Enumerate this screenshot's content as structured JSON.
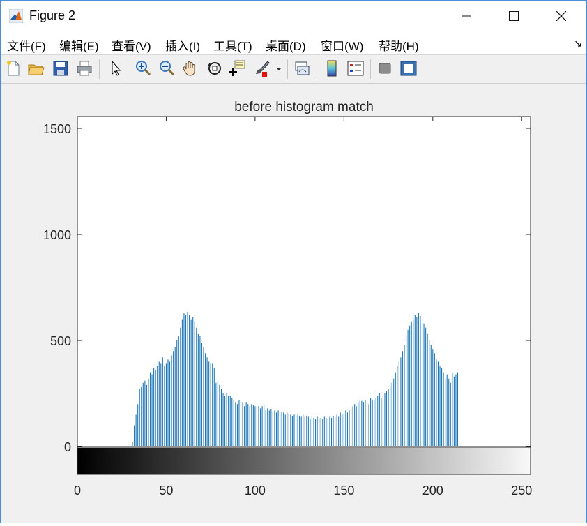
{
  "window": {
    "title": "Figure 2",
    "minimize_label": "—",
    "maximize_label": "☐",
    "close_label": "✕"
  },
  "menu": {
    "items": [
      "文件(F)",
      "编辑(E)",
      "查看(V)",
      "插入(I)",
      "工具(T)",
      "桌面(D)",
      "窗口(W)",
      "帮助(H)"
    ],
    "corner_glyph": "↘"
  },
  "toolbar": {
    "icons": [
      "new-file-icon",
      "open-folder-icon",
      "save-icon",
      "print-icon",
      "pointer-icon",
      "zoom-in-icon",
      "zoom-out-icon",
      "pan-hand-icon",
      "rotate-3d-icon",
      "data-cursor-icon",
      "brush-icon",
      "brush-dropdown-icon",
      "link-plot-icon",
      "colorbar-icon",
      "legend-icon",
      "hide-plot-tools-icon",
      "show-plot-tools-icon"
    ]
  },
  "chart_data": {
    "type": "bar",
    "title": "before histogram match",
    "xlabel": "",
    "ylabel": "",
    "xlim": [
      0,
      255
    ],
    "ylim": [
      0,
      1500
    ],
    "xticks": [
      "0",
      "50",
      "100",
      "150",
      "200",
      "250"
    ],
    "yticks": [
      "0",
      "500",
      "1000",
      "1500"
    ],
    "bar_color": "#1f77b4",
    "colorbar": "grayscale 0-255",
    "x_start": 31,
    "values": [
      20,
      100,
      150,
      200,
      270,
      280,
      300,
      310,
      290,
      320,
      350,
      340,
      370,
      360,
      380,
      400,
      390,
      420,
      380,
      390,
      410,
      400,
      430,
      450,
      470,
      500,
      520,
      560,
      600,
      630,
      620,
      635,
      620,
      600,
      610,
      590,
      560,
      530,
      520,
      490,
      470,
      440,
      420,
      400,
      390,
      390,
      370,
      300,
      310,
      290,
      270,
      250,
      240,
      250,
      240,
      240,
      230,
      220,
      210,
      200,
      220,
      200,
      210,
      190,
      210,
      200,
      190,
      200,
      195,
      190,
      185,
      190,
      180,
      190,
      195,
      170,
      180,
      170,
      175,
      165,
      170,
      160,
      170,
      160,
      165,
      160,
      150,
      160,
      155,
      150,
      145,
      150,
      145,
      150,
      145,
      140,
      150,
      140,
      145,
      140,
      130,
      145,
      135,
      130,
      140,
      130,
      135,
      130,
      140,
      135,
      130,
      140,
      135,
      145,
      140,
      150,
      140,
      160,
      150,
      155,
      170,
      160,
      170,
      180,
      190,
      200,
      190,
      210,
      220,
      215,
      210,
      220,
      210,
      200,
      230,
      220,
      220,
      230,
      240,
      250,
      230,
      240,
      250,
      260,
      270,
      280,
      300,
      320,
      350,
      380,
      400,
      420,
      450,
      480,
      520,
      550,
      570,
      590,
      600,
      620,
      610,
      630,
      615,
      600,
      580,
      560,
      530,
      500,
      480,
      460,
      440,
      410,
      400,
      380,
      370,
      350,
      320,
      340,
      320,
      300,
      350,
      330,
      340,
      350
    ]
  }
}
